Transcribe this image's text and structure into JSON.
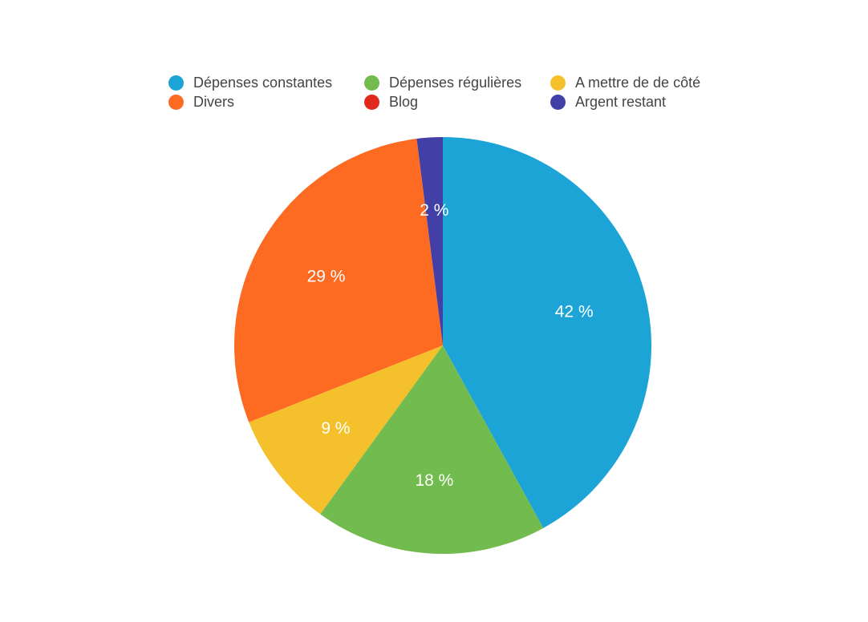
{
  "chart_data": {
    "type": "pie",
    "categories": [
      "Dépenses constantes",
      "Dépenses régulières",
      "A mettre de de côté",
      "Divers",
      "Blog",
      "Argent restant"
    ],
    "values": [
      42,
      18,
      9,
      29,
      0,
      2
    ],
    "labels": [
      "42 %",
      "18 %",
      "9 %",
      "29 %",
      "",
      "2 %"
    ],
    "colors": [
      "#1ca4d6",
      "#72bb4e",
      "#f4c12c",
      "#fd6b22",
      "#e0281c",
      "#4240a6"
    ],
    "legend_position": "top"
  }
}
